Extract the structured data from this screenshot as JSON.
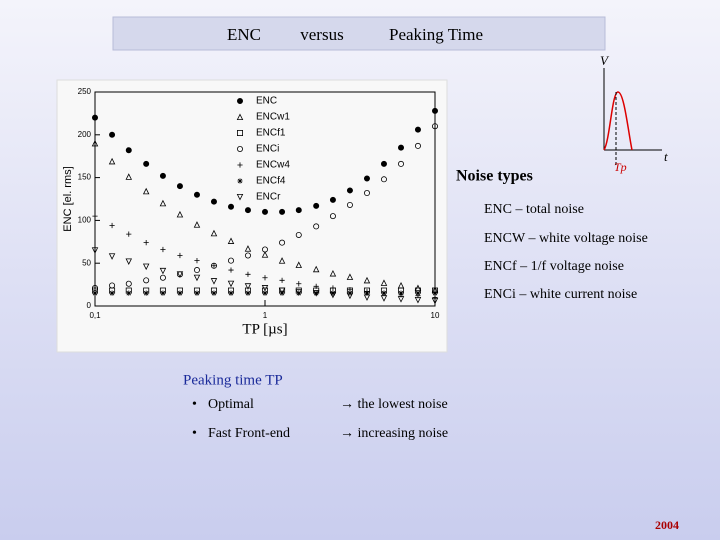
{
  "header": {
    "title": [
      "ENC",
      "versus",
      "Peaking Time"
    ]
  },
  "chart_data": {
    "type": "scatter",
    "ylabel": "ENC [el. rms]",
    "xlabel": "TP [µs]",
    "xlog": true,
    "xlim": [
      0.1,
      10
    ],
    "ylim": [
      0,
      250
    ],
    "xticks": [
      {
        "value": 0.1,
        "label": "0,1"
      },
      1,
      10
    ],
    "yticks": [
      0,
      50,
      100,
      150,
      200,
      250
    ],
    "x": [
      0.1,
      0.126,
      0.158,
      0.2,
      0.251,
      0.316,
      0.398,
      0.501,
      0.631,
      0.794,
      1,
      1.26,
      1.58,
      2,
      2.51,
      3.16,
      3.98,
      5.01,
      6.31,
      7.94,
      10
    ],
    "series": [
      {
        "name": "ENC",
        "marker": "dot",
        "color": "#000000",
        "values": [
          220,
          200,
          182,
          166,
          152,
          140,
          130,
          122,
          116,
          112,
          110,
          110,
          112,
          117,
          124,
          135,
          149,
          166,
          185,
          206,
          228
        ]
      },
      {
        "name": "ENCw1",
        "marker": "triangle",
        "color": "#000000",
        "values": [
          190,
          169,
          151,
          134,
          120,
          107,
          95,
          85,
          76,
          67,
          60,
          53,
          48,
          43,
          38,
          34,
          30,
          27,
          24,
          21,
          19
        ]
      },
      {
        "name": "ENCf1",
        "marker": "square",
        "color": "#000000",
        "values": [
          18,
          18,
          18,
          18,
          18,
          18,
          18,
          18,
          18,
          18,
          18,
          18,
          18,
          18,
          18,
          18,
          18,
          18,
          18,
          18,
          18
        ]
      },
      {
        "name": "ENCi",
        "marker": "circle",
        "color": "#000000",
        "values": [
          21,
          24,
          26,
          30,
          33,
          37,
          42,
          47,
          53,
          59,
          66,
          74,
          83,
          93,
          105,
          118,
          132,
          148,
          166,
          187,
          210
        ]
      },
      {
        "name": "ENCw4",
        "marker": "plus",
        "color": "#000000",
        "values": [
          105,
          94,
          84,
          74,
          66,
          59,
          53,
          47,
          42,
          37,
          33,
          30,
          26,
          23,
          21,
          19,
          17,
          15,
          13,
          12,
          10
        ]
      },
      {
        "name": "ENCf4",
        "marker": "star",
        "color": "#000000",
        "values": [
          15,
          15,
          15,
          15,
          15,
          15,
          15,
          15,
          15,
          15,
          15,
          15,
          15,
          15,
          15,
          15,
          15,
          15,
          15,
          15,
          15
        ]
      },
      {
        "name": "ENCr",
        "marker": "down-triangle",
        "color": "#000000",
        "values": [
          65,
          58,
          52,
          46,
          41,
          37,
          33,
          29,
          26,
          23,
          21,
          18,
          16,
          15,
          13,
          12,
          10,
          9,
          8,
          7,
          6
        ]
      }
    ]
  },
  "pulse": {
    "ylabel": "V",
    "xlabel": "t",
    "peak_label": "Tp"
  },
  "noise_types": {
    "title": "Noise types",
    "items": [
      "ENC – total noise",
      "ENCW – white voltage noise",
      "ENCf – 1/f voltage noise",
      "ENCi – white current noise"
    ]
  },
  "peaking": {
    "title": "Peaking time TP",
    "items": [
      {
        "label": "Optimal",
        "result": "→ the lowest noise"
      },
      {
        "label": "Fast Front-end",
        "result": "→ increasing noise"
      }
    ]
  },
  "footer": {
    "year": "2004"
  }
}
